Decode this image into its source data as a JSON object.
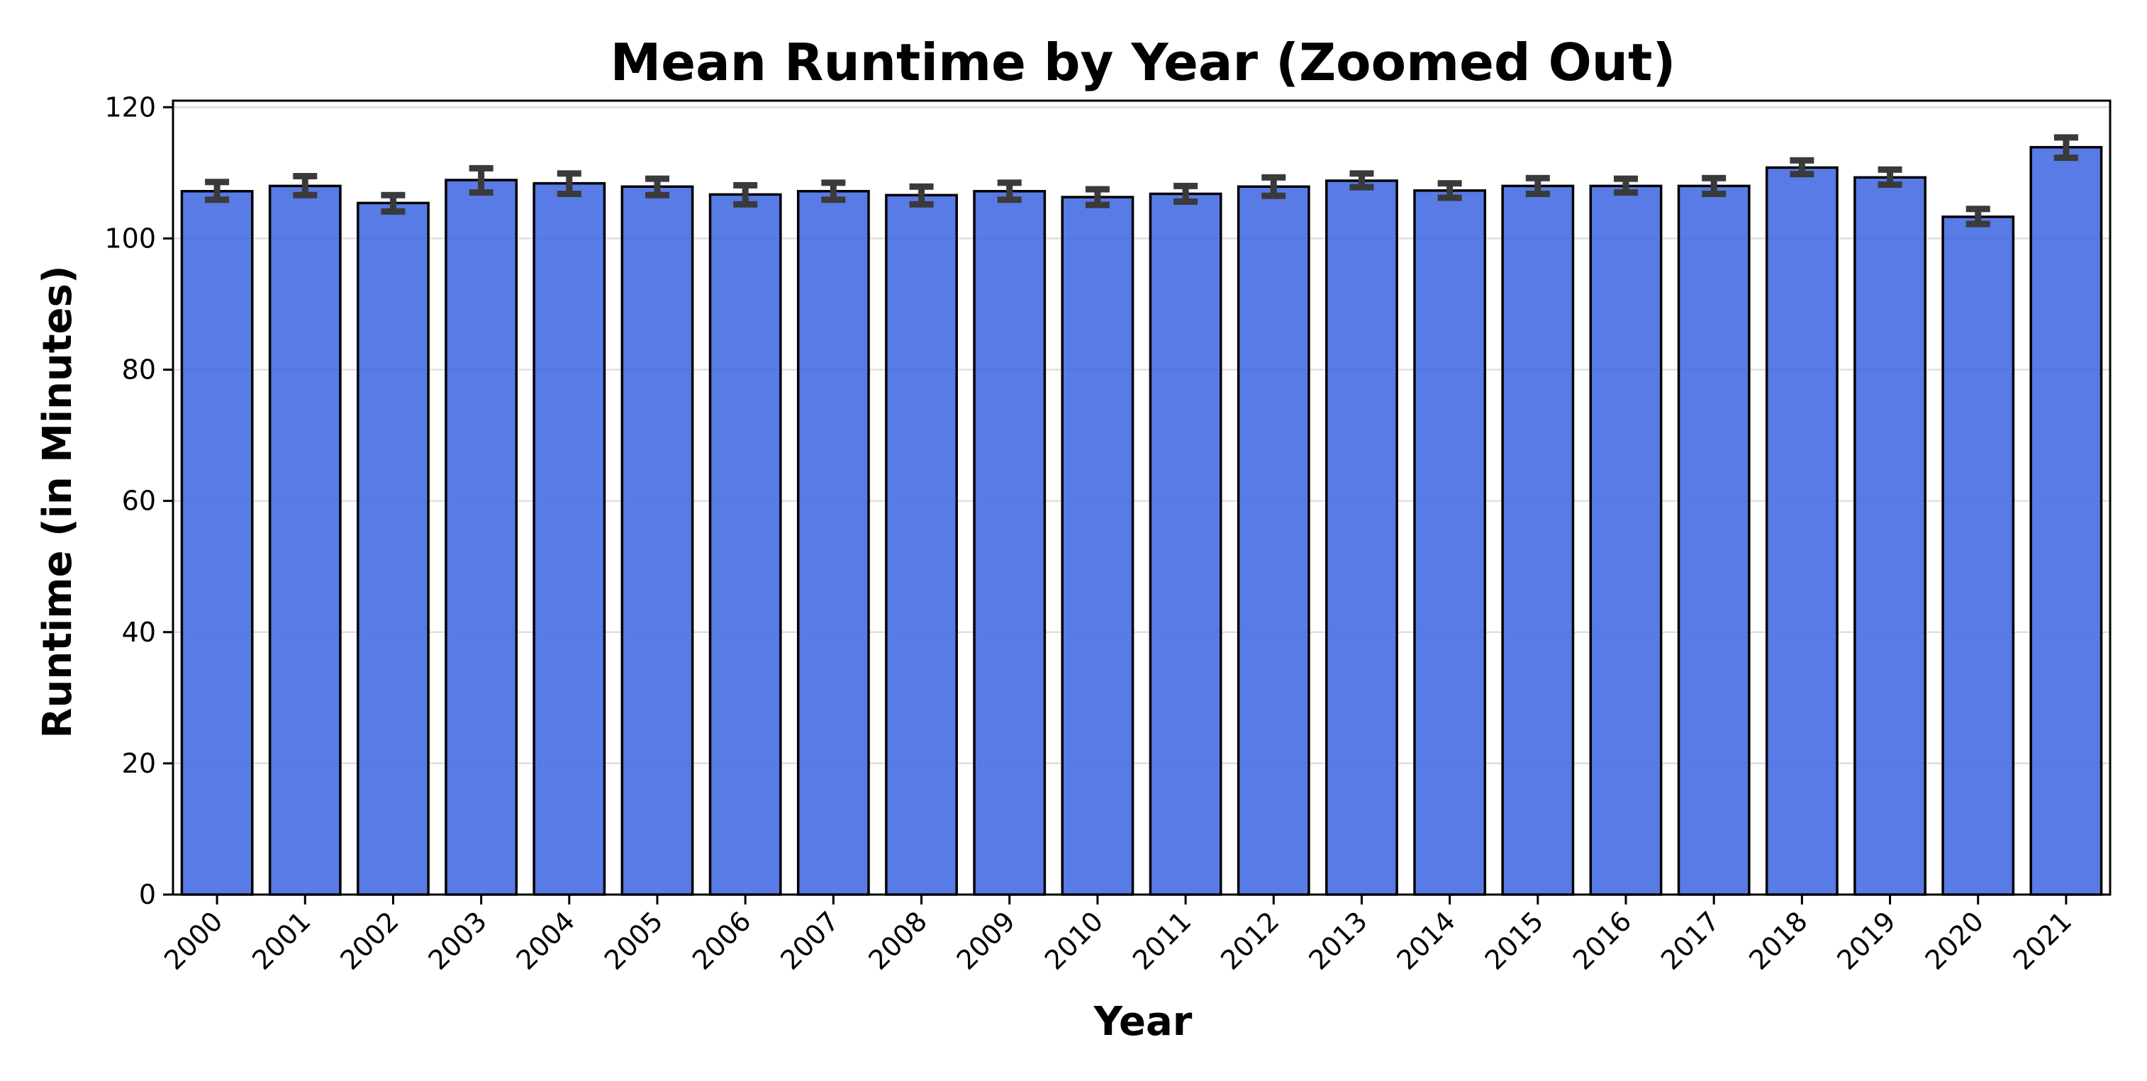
{
  "chart_data": {
    "type": "bar",
    "title": "Mean Runtime by Year (Zoomed Out)",
    "xlabel": "Year",
    "ylabel": "Runtime (in Minutes)",
    "categories": [
      "2000",
      "2001",
      "2002",
      "2003",
      "2004",
      "2005",
      "2006",
      "2007",
      "2008",
      "2009",
      "2010",
      "2011",
      "2012",
      "2013",
      "2014",
      "2015",
      "2016",
      "2017",
      "2018",
      "2019",
      "2020",
      "2021"
    ],
    "values": [
      107.2,
      108.0,
      105.4,
      108.9,
      108.4,
      107.9,
      106.7,
      107.2,
      106.6,
      107.2,
      106.3,
      106.8,
      107.9,
      108.8,
      107.3,
      108.0,
      108.0,
      108.0,
      110.8,
      109.3,
      103.3,
      113.9
    ],
    "error_low": [
      105.9,
      106.6,
      104.1,
      107.0,
      106.8,
      106.6,
      105.2,
      105.9,
      105.2,
      105.9,
      105.1,
      105.6,
      106.5,
      107.8,
      106.2,
      106.8,
      107.0,
      106.8,
      109.8,
      108.2,
      102.2,
      112.3
    ],
    "error_high": [
      108.6,
      109.5,
      106.6,
      110.7,
      109.9,
      109.1,
      108.1,
      108.5,
      107.9,
      108.5,
      107.5,
      108.0,
      109.3,
      109.9,
      108.4,
      109.2,
      109.1,
      109.2,
      111.9,
      110.5,
      104.5,
      115.4
    ],
    "ylim": [
      0,
      121
    ],
    "yticks": [
      0,
      20,
      40,
      60,
      80,
      100,
      120
    ],
    "grid": "horizontal",
    "legend": "none",
    "colors": {
      "bar_fill": "#4169E1",
      "bar_edge": "#000000",
      "error_bar": "#3a3a3a",
      "grid": "#d9d9d9",
      "axis": "#000000"
    }
  }
}
